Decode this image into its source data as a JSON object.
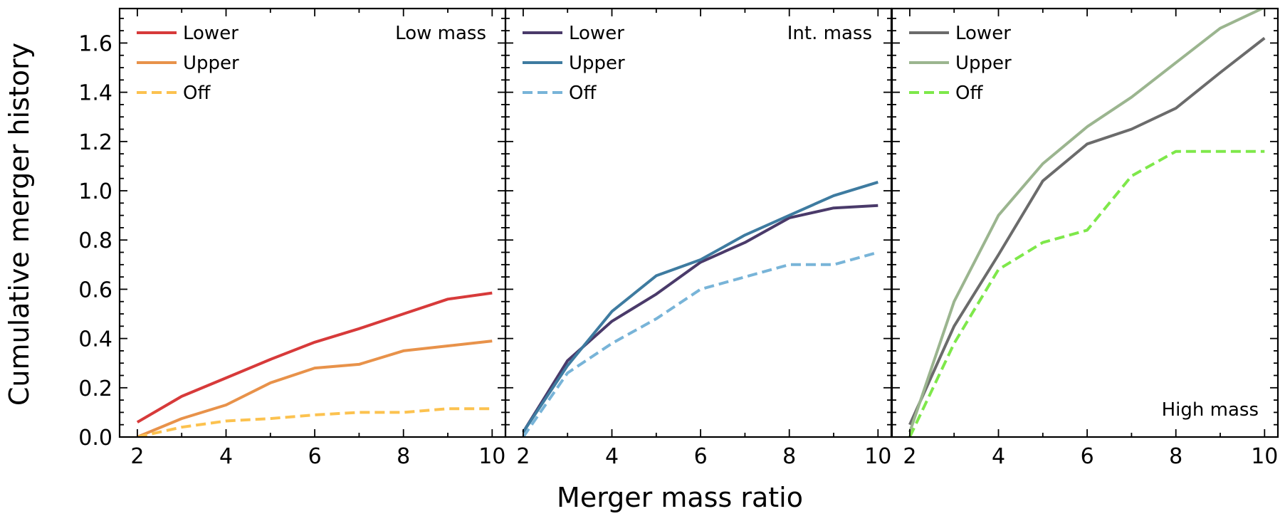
{
  "chart_data": {
    "type": "line",
    "xlabel": "Merger mass ratio",
    "ylabel": "Cumulative merger history",
    "xlim": [
      1.6,
      10.3
    ],
    "ylim": [
      0,
      1.74
    ],
    "xticks": [
      2,
      4,
      6,
      8,
      10
    ],
    "yticks": [
      0.0,
      0.2,
      0.4,
      0.6,
      0.8,
      1.0,
      1.2,
      1.4,
      1.6
    ],
    "ytick_labels": [
      "0.0",
      "0.2",
      "0.4",
      "0.6",
      "0.8",
      "1.0",
      "1.2",
      "1.4",
      "1.6"
    ],
    "x": [
      2,
      3,
      4,
      5,
      6,
      7,
      8,
      9,
      10
    ],
    "panels": [
      {
        "label": "Low mass",
        "label_position": "top-right",
        "series": [
          {
            "name": "Lower",
            "color": "#d73a3a",
            "dash": "solid",
            "values": [
              0.06,
              0.165,
              0.24,
              0.315,
              0.385,
              0.44,
              0.5,
              0.56,
              0.585
            ]
          },
          {
            "name": "Upper",
            "color": "#e8924a",
            "dash": "solid",
            "values": [
              0.0,
              0.075,
              0.13,
              0.22,
              0.28,
              0.295,
              0.35,
              0.37,
              0.39
            ]
          },
          {
            "name": "Off",
            "color": "#fcc24f",
            "dash": "dashed",
            "values": [
              0.0,
              0.04,
              0.065,
              0.075,
              0.09,
              0.1,
              0.1,
              0.115,
              0.115
            ]
          }
        ]
      },
      {
        "label": "Int. mass",
        "label_position": "top-right",
        "series": [
          {
            "name": "Lower",
            "color": "#4a3a6a",
            "dash": "solid",
            "values": [
              0.02,
              0.31,
              0.47,
              0.58,
              0.71,
              0.79,
              0.89,
              0.93,
              0.94
            ]
          },
          {
            "name": "Upper",
            "color": "#3e7ba0",
            "dash": "solid",
            "values": [
              0.02,
              0.29,
              0.51,
              0.655,
              0.72,
              0.82,
              0.9,
              0.98,
              1.035
            ]
          },
          {
            "name": "Off",
            "color": "#78b4d8",
            "dash": "dashed",
            "values": [
              0.0,
              0.26,
              0.38,
              0.48,
              0.6,
              0.65,
              0.7,
              0.7,
              0.75
            ]
          }
        ]
      },
      {
        "label": "High mass",
        "label_position": "bottom-right",
        "series": [
          {
            "name": "Lower",
            "color": "#6b6b6b",
            "dash": "solid",
            "values": [
              0.05,
              0.45,
              0.74,
              1.04,
              1.19,
              1.25,
              1.335,
              1.48,
              1.62
            ]
          },
          {
            "name": "Upper",
            "color": "#9bb58f",
            "dash": "solid",
            "values": [
              0.02,
              0.55,
              0.9,
              1.11,
              1.26,
              1.38,
              1.52,
              1.66,
              1.745
            ]
          },
          {
            "name": "Off",
            "color": "#7ee84a",
            "dash": "dashed",
            "values": [
              0.0,
              0.38,
              0.68,
              0.79,
              0.84,
              1.06,
              1.16,
              1.16,
              1.16
            ]
          }
        ]
      }
    ]
  }
}
